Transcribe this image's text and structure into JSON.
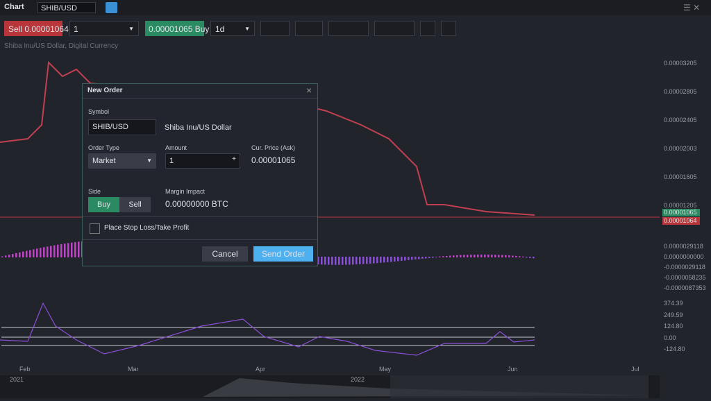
{
  "header": {
    "title": "Chart",
    "symbol": "SHIB/USD"
  },
  "toolbar": {
    "sell_label": "Sell",
    "sell_price": "0.00001064",
    "quantity": "1",
    "buy_price": "0.00001065",
    "buy_label": "Buy",
    "interval": "1d"
  },
  "chart": {
    "description": "Shiba Inu/US Dollar, Digital Currency",
    "price_axis": [
      "0.00003205",
      "0.00002805",
      "0.00002405",
      "0.00002003",
      "0.00001605",
      "0.00001205"
    ],
    "price_tags": [
      "0.00001065",
      "0.00001064"
    ],
    "macd_axis": [
      "0.0000029118",
      "0.0000000000",
      "-0.0000029118",
      "-0.0000058235",
      "-0.0000087353"
    ],
    "oscillator_axis": [
      "374.39",
      "249.59",
      "124.80",
      "0.00",
      "-124.80"
    ],
    "time_axis": [
      "Feb",
      "Mar",
      "Apr",
      "May",
      "Jun",
      "Jul"
    ],
    "navigator": [
      "2021",
      "2022"
    ]
  },
  "dialog": {
    "title": "New Order",
    "symbol_label": "Symbol",
    "symbol": "SHIB/USD",
    "symbol_name": "Shiba Inu/US Dollar",
    "order_type_label": "Order Type",
    "order_type": "Market",
    "amount_label": "Amount",
    "amount": "1",
    "price_label": "Cur. Price (Ask)",
    "price": "0.00001065",
    "side_label": "Side",
    "buy": "Buy",
    "sell": "Sell",
    "margin_label": "Margin Impact",
    "margin": "0.00000000 BTC",
    "stop_loss": "Place Stop Loss/Take Profit",
    "cancel": "Cancel",
    "send": "Send Order"
  }
}
